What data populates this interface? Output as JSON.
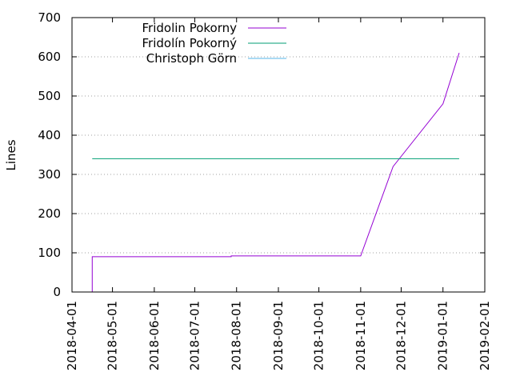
{
  "chart_data": {
    "type": "line",
    "xlabel": "",
    "ylabel": "Lines",
    "ylim": [
      0,
      700
    ],
    "yticks": [
      0,
      100,
      200,
      300,
      400,
      500,
      600,
      700
    ],
    "xlim": [
      "2018-04-01",
      "2019-02-01"
    ],
    "xticks": [
      "2018-04-01",
      "2018-05-01",
      "2018-06-01",
      "2018-07-01",
      "2018-08-01",
      "2018-09-01",
      "2018-10-01",
      "2018-11-01",
      "2018-12-01",
      "2019-01-01",
      "2019-02-01"
    ],
    "grid": "y-dotted",
    "legend_position": "top-left",
    "series": [
      {
        "name": "Fridolin Pokorny",
        "color": "#9400d3",
        "points": [
          [
            "2018-04-16",
            0
          ],
          [
            "2018-04-16",
            90
          ],
          [
            "2018-07-28",
            90
          ],
          [
            "2018-07-28",
            92
          ],
          [
            "2018-11-01",
            92
          ],
          [
            "2018-11-25",
            320
          ],
          [
            "2019-01-01",
            480
          ],
          [
            "2019-01-13",
            610
          ]
        ]
      },
      {
        "name": "Fridolín Pokorný",
        "color": "#009e73",
        "points": [
          [
            "2018-04-16",
            340
          ],
          [
            "2019-01-13",
            340
          ]
        ]
      },
      {
        "name": "Christoph Görn",
        "color": "#56b4e9",
        "points": []
      }
    ]
  }
}
